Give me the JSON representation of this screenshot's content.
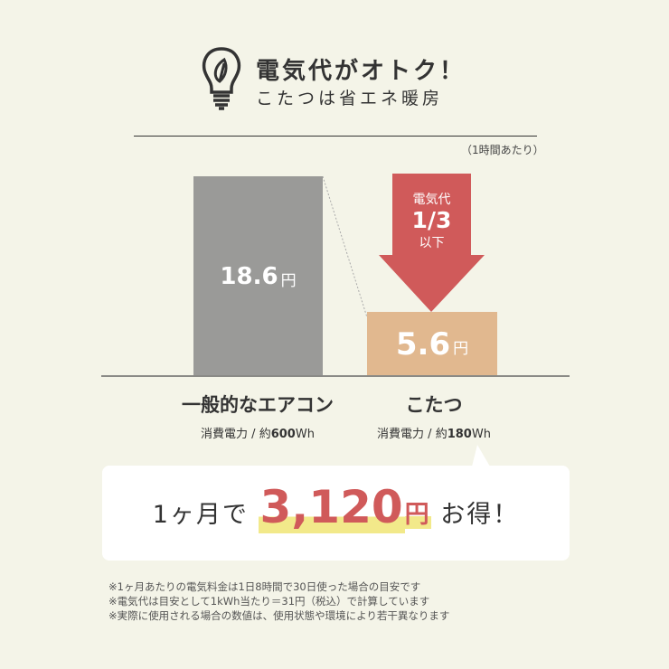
{
  "header": {
    "title": "電気代がオトク！",
    "subtitle": "こたつは省エネ暖房",
    "unit_note": "（1時間あたり）"
  },
  "chart_data": {
    "type": "bar",
    "categories": [
      "一般的なエアコン",
      "こたつ"
    ],
    "values": [
      18.6,
      5.6
    ],
    "value_labels": [
      "18.6",
      "5.6"
    ],
    "unit": "円",
    "colors": [
      "#9a9a98",
      "#e1b88f"
    ],
    "specs": [
      {
        "prefix": "消費電力 / 約",
        "value": "600",
        "unit": "Wh"
      },
      {
        "prefix": "消費電力 / 約",
        "value": "180",
        "unit": "Wh"
      }
    ],
    "annotation": {
      "line1": "電気代",
      "line2": "1/3",
      "line3": "以下",
      "color": "#d05a5a"
    }
  },
  "summary": {
    "prefix": "1ヶ月で",
    "amount": "3,120",
    "unit": "円",
    "suffix": "お得！",
    "accent": "#d05a5a"
  },
  "notes": [
    "※1ヶ月あたりの電気料金は1日8時間で30日使った場合の目安です",
    "※電気代は目安として1kWh当たり＝31円（税込）で計算しています",
    "※実際に使用される場合の数値は、使用状態や環境により若干異なります"
  ]
}
